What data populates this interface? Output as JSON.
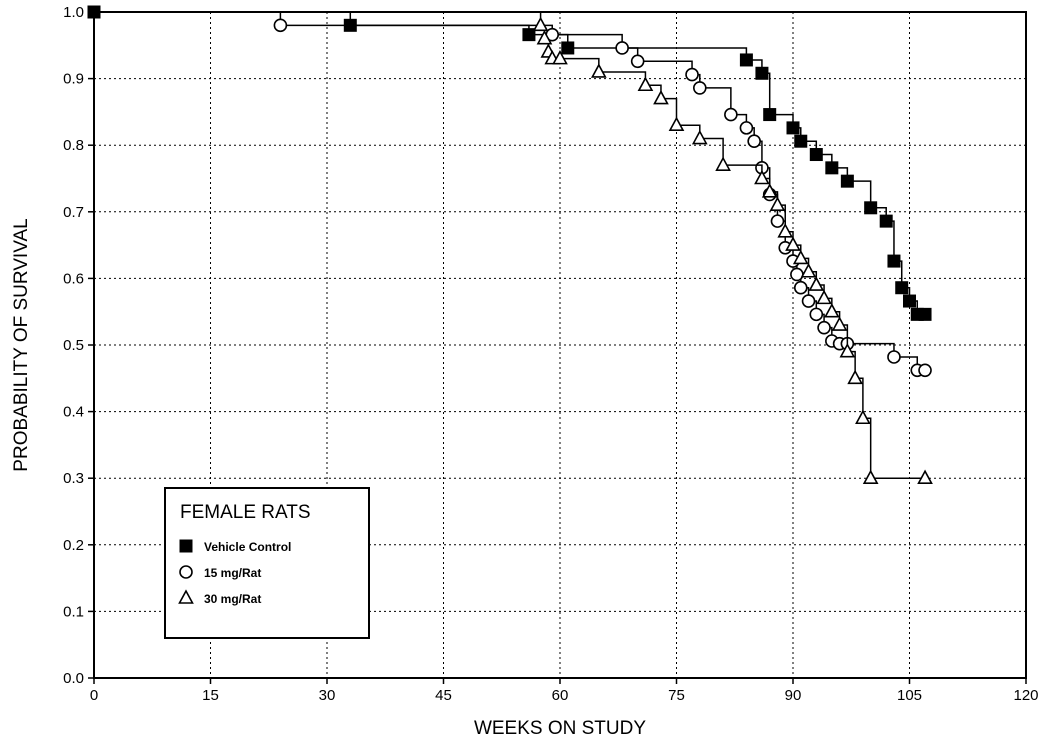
{
  "chart_data": {
    "type": "line",
    "xlabel": "WEEKS ON STUDY",
    "ylabel": "PROBABILITY OF SURVIVAL",
    "xlim": [
      0,
      120
    ],
    "ylim": [
      0.0,
      1.0
    ],
    "x_ticks": [
      0,
      15,
      30,
      45,
      60,
      75,
      90,
      105,
      120
    ],
    "x_tick_labels": [
      "0",
      "15",
      "30",
      "45",
      "60",
      "75",
      "90",
      "105",
      "120"
    ],
    "y_ticks": [
      0.0,
      0.1,
      0.2,
      0.3,
      0.4,
      0.5,
      0.6,
      0.7,
      0.8,
      0.9,
      1.0
    ],
    "y_tick_labels": [
      "0.0",
      "0.1",
      "0.2",
      "0.3",
      "0.4",
      "0.5",
      "0.6",
      "0.7",
      "0.8",
      "0.9",
      "1.0"
    ],
    "grid": true,
    "legend": {
      "title": "FEMALE RATS",
      "placement": "bottom-left"
    },
    "series": [
      {
        "name": "Vehicle Control",
        "marker": "square",
        "x": [
          0,
          33,
          56,
          61,
          84,
          86,
          87,
          90,
          91,
          93,
          95,
          97,
          100,
          102,
          103,
          104,
          105,
          106,
          107
        ],
        "y": [
          1.0,
          0.98,
          0.966,
          0.946,
          0.928,
          0.908,
          0.846,
          0.826,
          0.806,
          0.786,
          0.766,
          0.746,
          0.706,
          0.686,
          0.626,
          0.586,
          0.566,
          0.546,
          0.546
        ]
      },
      {
        "name": "15 mg/Rat",
        "marker": "circle",
        "x": [
          24,
          59,
          68,
          70,
          77,
          78,
          82,
          84,
          85,
          86,
          87,
          88,
          89,
          90,
          90.5,
          91,
          92,
          93,
          94,
          95,
          96,
          97,
          103,
          106,
          107
        ],
        "y": [
          0.98,
          0.966,
          0.946,
          0.926,
          0.906,
          0.886,
          0.846,
          0.826,
          0.806,
          0.766,
          0.726,
          0.686,
          0.646,
          0.626,
          0.606,
          0.586,
          0.566,
          0.546,
          0.526,
          0.506,
          0.502,
          0.502,
          0.482,
          0.462,
          0.462
        ]
      },
      {
        "name": "30 mg/Rat",
        "marker": "triangle",
        "x": [
          57.5,
          58,
          58.5,
          59,
          60,
          65,
          71,
          73,
          75,
          78,
          81,
          86,
          87,
          88,
          89,
          90,
          91,
          92,
          93,
          94,
          95,
          96,
          97,
          98,
          99,
          100,
          107
        ],
        "y": [
          0.98,
          0.96,
          0.94,
          0.93,
          0.93,
          0.91,
          0.89,
          0.87,
          0.83,
          0.81,
          0.77,
          0.75,
          0.73,
          0.71,
          0.67,
          0.65,
          0.63,
          0.61,
          0.59,
          0.57,
          0.55,
          0.53,
          0.49,
          0.45,
          0.39,
          0.3,
          0.3
        ]
      }
    ]
  }
}
